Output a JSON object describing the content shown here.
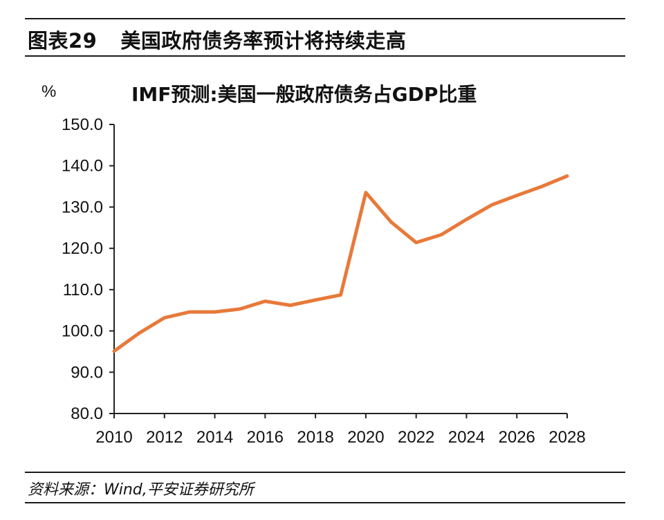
{
  "header": {
    "figure_number": "图表29",
    "figure_title": "美国政府债务率预计将持续走高"
  },
  "source": "资料来源：Wind,平安证券研究所",
  "chart_data": {
    "type": "line",
    "title": "IMF预测:美国一般政府债务占GDP比重",
    "ylabel": "%",
    "xlabel": "",
    "ylim": [
      80,
      150
    ],
    "xlim": [
      2010,
      2028
    ],
    "y_ticks": [
      "80.0",
      "90.0",
      "100.0",
      "110.0",
      "120.0",
      "130.0",
      "140.0",
      "150.0"
    ],
    "x_ticks": [
      "2010",
      "2012",
      "2014",
      "2016",
      "2018",
      "2020",
      "2022",
      "2024",
      "2026",
      "2028"
    ],
    "grid": false,
    "series": [
      {
        "color": "#E8793A",
        "x": [
          2010,
          2011,
          2012,
          2013,
          2014,
          2015,
          2016,
          2017,
          2018,
          2019,
          2020,
          2021,
          2022,
          2023,
          2024,
          2025,
          2026,
          2027,
          2028
        ],
        "values": [
          95.1,
          99.5,
          103.2,
          104.6,
          104.6,
          105.3,
          107.2,
          106.2,
          107.5,
          108.7,
          133.5,
          126.4,
          121.4,
          123.3,
          127.0,
          130.5,
          132.8,
          135.0,
          137.5
        ]
      }
    ]
  }
}
